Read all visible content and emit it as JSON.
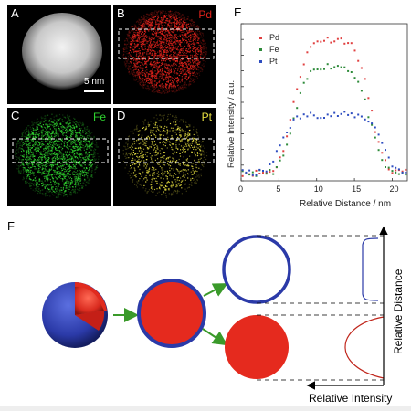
{
  "panels": {
    "A": {
      "letter": "A",
      "scale_bar": "5 nm"
    },
    "B": {
      "letter": "B",
      "element": "Pd",
      "color": "#e0221b"
    },
    "C": {
      "letter": "C",
      "element": "Fe",
      "color": "#2fd12f"
    },
    "D": {
      "letter": "D",
      "element": "Pt",
      "color": "#e8e040"
    }
  },
  "panel_E": {
    "letter": "E"
  },
  "panel_F": {
    "letter": "F",
    "label_relative_distance": "Relative Distance",
    "label_relative_intensity": "Relative Intensity",
    "colors": {
      "shell": "#2b3aa8",
      "core": "#e52a1e",
      "arrow": "#3a9a2a"
    }
  },
  "chart_data": {
    "type": "scatter",
    "xlabel": "Relative Distance / nm",
    "ylabel": "Relative Intensity / a.u.",
    "xlim": [
      0,
      22
    ],
    "x_ticks": [
      "0",
      "5",
      "10",
      "15",
      "20"
    ],
    "legend_position": "top-left",
    "series": [
      {
        "name": "Pd",
        "color": "#e04040"
      },
      {
        "name": "Fe",
        "color": "#2e8b3a"
      },
      {
        "name": "Pt",
        "color": "#2d4cc0"
      }
    ]
  }
}
